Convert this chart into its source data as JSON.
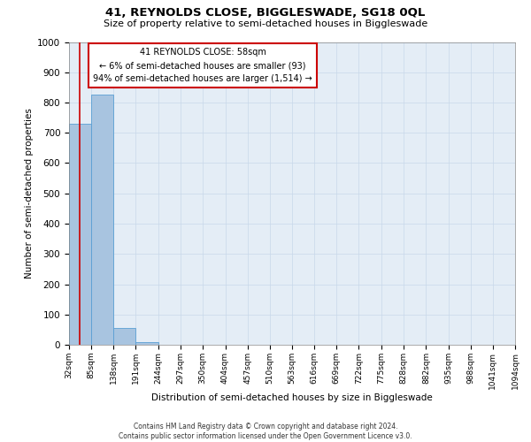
{
  "title": "41, REYNOLDS CLOSE, BIGGLESWADE, SG18 0QL",
  "subtitle": "Size of property relative to semi-detached houses in Biggleswade",
  "xlabel": "Distribution of semi-detached houses by size in Biggleswade",
  "ylabel": "Number of semi-detached properties",
  "footer_line1": "Contains HM Land Registry data © Crown copyright and database right 2024.",
  "footer_line2": "Contains public sector information licensed under the Open Government Licence v3.0.",
  "annotation_title": "41 REYNOLDS CLOSE: 58sqm",
  "annotation_line2": "← 6% of semi-detached houses are smaller (93)",
  "annotation_line3": "94% of semi-detached houses are larger (1,514) →",
  "property_size": 58,
  "bin_edges": [
    32,
    85,
    138,
    191,
    244,
    297,
    350,
    404,
    457,
    510,
    563,
    616,
    669,
    722,
    775,
    828,
    882,
    935,
    988,
    1041,
    1094
  ],
  "bar_values": [
    730,
    825,
    55,
    10,
    0,
    0,
    0,
    0,
    0,
    0,
    0,
    0,
    0,
    0,
    0,
    0,
    0,
    0,
    0,
    0
  ],
  "bar_color": "#a8c4e0",
  "bar_edge_color": "#5a9fd4",
  "grid_color": "#c8d8ea",
  "background_color": "#e4edf6",
  "red_line_color": "#cc0000",
  "annotation_box_color": "#ffffff",
  "annotation_border_color": "#cc0000",
  "ylim": [
    0,
    1000
  ],
  "yticks": [
    0,
    100,
    200,
    300,
    400,
    500,
    600,
    700,
    800,
    900,
    1000
  ]
}
